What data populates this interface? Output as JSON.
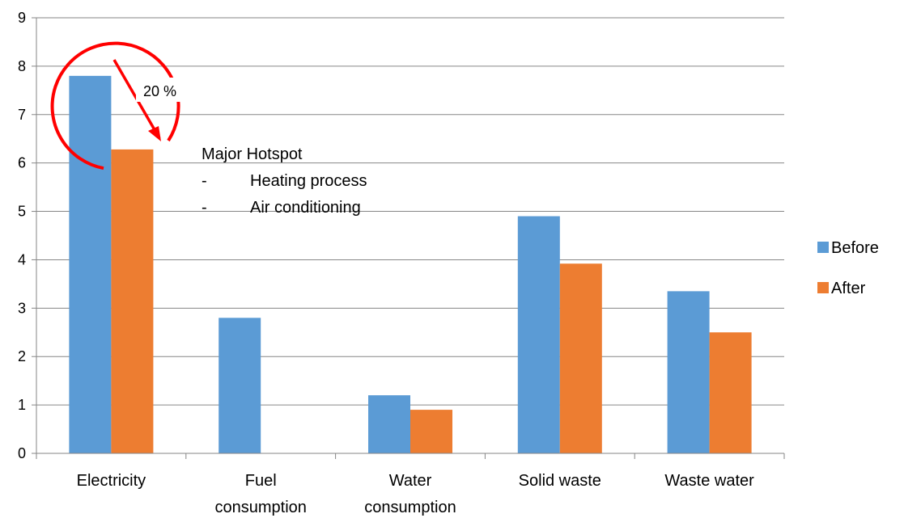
{
  "chart_data": {
    "type": "bar",
    "title": "",
    "xlabel": "",
    "ylabel": "",
    "ylim": [
      0,
      9
    ],
    "yticks": [
      0,
      1,
      2,
      3,
      4,
      5,
      6,
      7,
      8,
      9
    ],
    "grid": true,
    "legend_position": "right",
    "categories": [
      [
        "Electricity"
      ],
      [
        "Fuel",
        "consumption"
      ],
      [
        "Water",
        "consumption"
      ],
      [
        "Solid waste"
      ],
      [
        "Waste water"
      ]
    ],
    "series": [
      {
        "name": "Before",
        "color": "#5B9BD5",
        "values": [
          7.8,
          2.8,
          1.2,
          4.9,
          3.35
        ]
      },
      {
        "name": "After",
        "color": "#ED7D31",
        "values": [
          6.28,
          0,
          0.9,
          3.92,
          2.5
        ]
      }
    ],
    "annotations": {
      "reduction_label": "20 %",
      "hotspot_title": "Major Hotspot",
      "hotspot_items": [
        {
          "bullet": "-",
          "text": "Heating process"
        },
        {
          "bullet": "-",
          "text": "Air conditioning"
        }
      ],
      "highlight_color": "#FF0000"
    }
  }
}
